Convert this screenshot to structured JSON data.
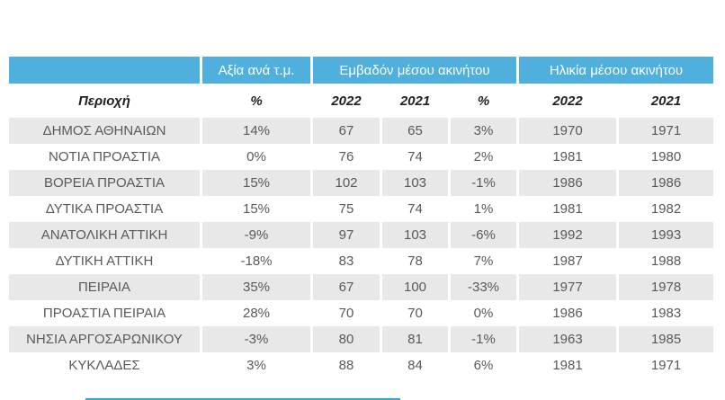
{
  "colors": {
    "header_blue": "#4FB0DD",
    "row_gray": "#e8e8e8",
    "body_text": "#58595b",
    "subheader_text": "#231f20",
    "partial_line_blue": "#29abe2"
  },
  "chart_data": {
    "type": "table",
    "title": "",
    "column_groups": [
      {
        "label": "",
        "span": 1
      },
      {
        "label": "Αξία ανά τ.μ.",
        "span": 1
      },
      {
        "label": "Εμβαδόν μέσου ακινήτου",
        "span": 3
      },
      {
        "label": "Ηλικία μέσου ακινήτου",
        "span": 2
      }
    ],
    "sub_headers": [
      "Περιοχή",
      "%",
      "2022",
      "2021",
      "%",
      "2022",
      "2021"
    ],
    "rows": [
      [
        "ΔΗΜΟΣ ΑΘΗΝΑΙΩΝ",
        "14%",
        "67",
        "65",
        "3%",
        "1970",
        "1971"
      ],
      [
        "ΝΟΤΙΑ ΠΡΟΑΣΤΙΑ",
        "0%",
        "76",
        "74",
        "2%",
        "1981",
        "1980"
      ],
      [
        "ΒΟΡΕΙΑ ΠΡΟΑΣΤΙΑ",
        "15%",
        "102",
        "103",
        "-1%",
        "1986",
        "1986"
      ],
      [
        "ΔΥΤΙΚΑ ΠΡΟΑΣΤΙΑ",
        "15%",
        "75",
        "74",
        "1%",
        "1981",
        "1982"
      ],
      [
        "ΑΝΑΤΟΛΙΚΗ ΑΤΤΙΚΗ",
        "-9%",
        "97",
        "103",
        "-6%",
        "1992",
        "1993"
      ],
      [
        "ΔΥΤΙΚΗ ΑΤΤΙΚΗ",
        "-18%",
        "83",
        "78",
        "7%",
        "1987",
        "1988"
      ],
      [
        "ΠΕΙΡΑΙΑ",
        "35%",
        "67",
        "100",
        "-33%",
        "1977",
        "1978"
      ],
      [
        "ΠΡΟΑΣΤΙΑ ΠΕΙΡΑΙΑ",
        "28%",
        "70",
        "70",
        "0%",
        "1986",
        "1983"
      ],
      [
        "ΝΗΣΙΑ ΑΡΓΟΣΑΡΩΝΙΚΟΥ",
        "-3%",
        "80",
        "81",
        "-1%",
        "1963",
        "1985"
      ],
      [
        "ΚΥΚΛΑΔΕΣ",
        "3%",
        "88",
        "84",
        "6%",
        "1981",
        "1971"
      ]
    ]
  }
}
